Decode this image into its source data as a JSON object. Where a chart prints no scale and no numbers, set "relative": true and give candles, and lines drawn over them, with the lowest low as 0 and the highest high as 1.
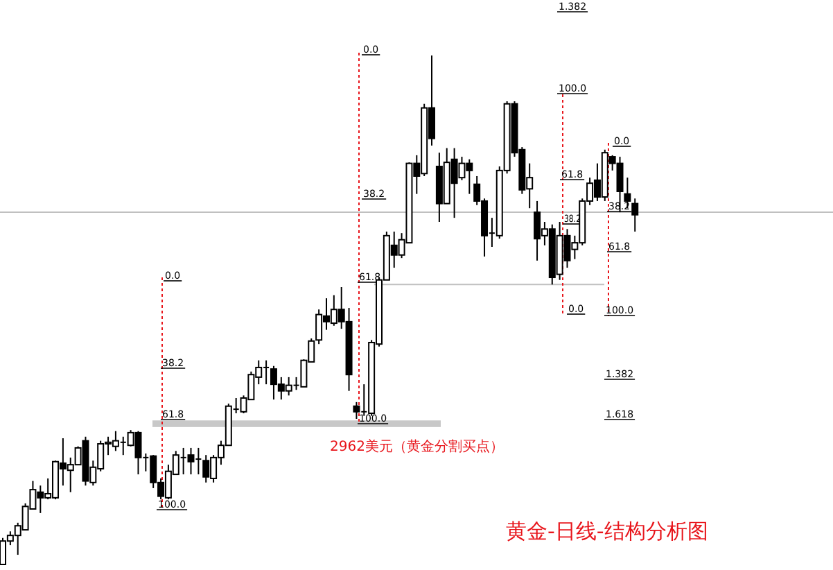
{
  "chart_data": {
    "type": "candlestick",
    "relative": true,
    "title": "黄金-日线-结构分析图",
    "categories": [
      null,
      null,
      null,
      null,
      null,
      null,
      null,
      null,
      null,
      null,
      null,
      null,
      null,
      null,
      null,
      null,
      null,
      null,
      null,
      null,
      null,
      null,
      null,
      null,
      null,
      null,
      null,
      null,
      null,
      null,
      null,
      null,
      null,
      null,
      null,
      null,
      null,
      null,
      null,
      null,
      null,
      null,
      null,
      null,
      null,
      null,
      null,
      null,
      null,
      null,
      null,
      null,
      null,
      null,
      null,
      null,
      null,
      null,
      null,
      null,
      null,
      null,
      null,
      null,
      null,
      null,
      null,
      null,
      null,
      null,
      null,
      null,
      null,
      null,
      null,
      null,
      null,
      null,
      null,
      null,
      null,
      null,
      null,
      null,
      null
    ],
    "ohlc": [
      [
        0,
        0.052,
        0,
        0.046
      ],
      [
        0.046,
        0.065,
        0.038,
        0.057
      ],
      [
        0.057,
        0.082,
        0.019,
        0.076
      ],
      [
        0.068,
        0.12,
        0.068,
        0.114
      ],
      [
        0.109,
        0.164,
        0.109,
        0.147
      ],
      [
        0.142,
        0.155,
        0.101,
        0.131
      ],
      [
        0.131,
        0.169,
        0.128,
        0.139
      ],
      [
        0.131,
        0.204,
        0.128,
        0.202
      ],
      [
        0.199,
        0.248,
        0.155,
        0.188
      ],
      [
        0.185,
        0.21,
        0.142,
        0.196
      ],
      [
        0.196,
        0.232,
        0.196,
        0.229
      ],
      [
        0.243,
        0.251,
        0.155,
        0.164
      ],
      [
        0.161,
        0.204,
        0.155,
        0.191
      ],
      [
        0.188,
        0.243,
        0.183,
        0.237
      ],
      [
        0.237,
        0.251,
        0.215,
        0.24
      ],
      [
        0.232,
        0.262,
        0.223,
        0.243
      ],
      [
        0.24,
        0.251,
        0.215,
        0.24
      ],
      [
        0.234,
        0.264,
        0.232,
        0.259
      ],
      [
        0.259,
        0.262,
        0.177,
        0.21
      ],
      [
        0.21,
        0.218,
        0.183,
        0.21
      ],
      [
        0.213,
        0.215,
        0.15,
        0.161
      ],
      [
        0.161,
        0.169,
        0.128,
        0.134
      ],
      [
        0.131,
        0.196,
        0.128,
        0.183
      ],
      [
        0.177,
        0.223,
        0.177,
        0.215
      ],
      [
        0.21,
        0.229,
        0.177,
        0.21
      ],
      [
        0.215,
        0.229,
        0.177,
        0.202
      ],
      [
        0.207,
        0.229,
        0.177,
        0.207
      ],
      [
        0.204,
        0.215,
        0.161,
        0.172
      ],
      [
        0.169,
        0.215,
        0.161,
        0.21
      ],
      [
        0.21,
        0.243,
        0.196,
        0.234
      ],
      [
        0.234,
        0.316,
        0.234,
        0.311
      ],
      [
        0.305,
        0.327,
        0.297,
        0.305
      ],
      [
        0.3,
        0.332,
        0.297,
        0.327
      ],
      [
        0.324,
        0.379,
        0.324,
        0.373
      ],
      [
        0.368,
        0.401,
        0.354,
        0.387
      ],
      [
        0.387,
        0.401,
        0.354,
        0.387
      ],
      [
        0.384,
        0.39,
        0.324,
        0.354
      ],
      [
        0.354,
        0.368,
        0.324,
        0.341
      ],
      [
        0.341,
        0.368,
        0.332,
        0.352
      ],
      [
        0.352,
        0.368,
        0.343,
        0.352
      ],
      [
        0.349,
        0.403,
        0.349,
        0.401
      ],
      [
        0.398,
        0.444,
        0.398,
        0.439
      ],
      [
        0.441,
        0.501,
        0.433,
        0.491
      ],
      [
        0.488,
        0.523,
        0.461,
        0.477
      ],
      [
        0.474,
        0.529,
        0.469,
        0.501
      ],
      [
        0.501,
        0.545,
        0.463,
        0.477
      ],
      [
        0.477,
        0.504,
        0.341,
        0.373
      ],
      [
        0.311,
        0.319,
        0.286,
        0.3
      ],
      [
        0.3,
        0.354,
        0.292,
        0.3
      ],
      [
        0.297,
        0.441,
        0.292,
        0.436
      ],
      [
        0.433,
        0.564,
        0.428,
        0.559
      ],
      [
        0.559,
        0.654,
        0.559,
        0.646
      ],
      [
        0.627,
        0.654,
        0.583,
        0.608
      ],
      [
        0.608,
        0.651,
        0.602,
        0.638
      ],
      [
        0.632,
        0.79,
        0.632,
        0.788
      ],
      [
        0.788,
        0.804,
        0.728,
        0.763
      ],
      [
        0.768,
        0.905,
        0.763,
        0.897
      ],
      [
        0.897,
        1,
        0.823,
        0.837
      ],
      [
        0.782,
        0.809,
        0.673,
        0.709
      ],
      [
        0.709,
        0.818,
        0.709,
        0.79
      ],
      [
        0.796,
        0.818,
        0.681,
        0.749
      ],
      [
        0.76,
        0.801,
        0.755,
        0.788
      ],
      [
        0.788,
        0.796,
        0.728,
        0.774
      ],
      [
        0.747,
        0.763,
        0.706,
        0.714
      ],
      [
        0.714,
        0.719,
        0.605,
        0.646
      ],
      [
        0.651,
        0.681,
        0.624,
        0.651
      ],
      [
        0.646,
        0.782,
        0.64,
        0.774
      ],
      [
        0.774,
        0.91,
        0.768,
        0.905
      ],
      [
        0.905,
        0.91,
        0.801,
        0.809
      ],
      [
        0.815,
        0.82,
        0.728,
        0.736
      ],
      [
        0.738,
        0.788,
        0.7,
        0.76
      ],
      [
        0.692,
        0.714,
        0.597,
        0.64
      ],
      [
        0.646,
        0.673,
        0.627,
        0.659
      ],
      [
        0.659,
        0.668,
        0.55,
        0.564
      ],
      [
        0.57,
        0.673,
        0.559,
        0.646
      ],
      [
        0.646,
        0.659,
        0.583,
        0.597
      ],
      [
        0.619,
        0.646,
        0.6,
        0.632
      ],
      [
        0.632,
        0.719,
        0.627,
        0.714
      ],
      [
        0.714,
        0.76,
        0.706,
        0.749
      ],
      [
        0.755,
        0.788,
        0.714,
        0.722
      ],
      [
        0.722,
        0.815,
        0.714,
        0.809
      ],
      [
        0.801,
        0.804,
        0.774,
        0.788
      ],
      [
        0.788,
        0.801,
        0.692,
        0.733
      ],
      [
        0.728,
        0.76,
        0.7,
        0.714
      ],
      [
        0.709,
        0.719,
        0.654,
        0.687
      ]
    ],
    "ref_lines": [
      {
        "axis": "y",
        "value": 0.692,
        "color": "#c0c0c0"
      },
      {
        "axis": "y",
        "value": 0.55,
        "color": "#c0c0c0"
      }
    ],
    "bands": [
      {
        "axis": "y",
        "from": 0.27,
        "to": 0.283,
        "color": "#c8c8c8"
      }
    ],
    "annotations": [
      "0.0",
      "38.2",
      "61.8",
      "100.0",
      "0.0",
      "38.2",
      "61.8",
      "100.0",
      "1.382",
      "100.0",
      "61.8",
      "38.2",
      "0.0",
      "0.0",
      "38.2",
      "61.8",
      "100.0",
      "1.382",
      "1.618",
      "2962美元（黄金分割买点）"
    ]
  }
}
